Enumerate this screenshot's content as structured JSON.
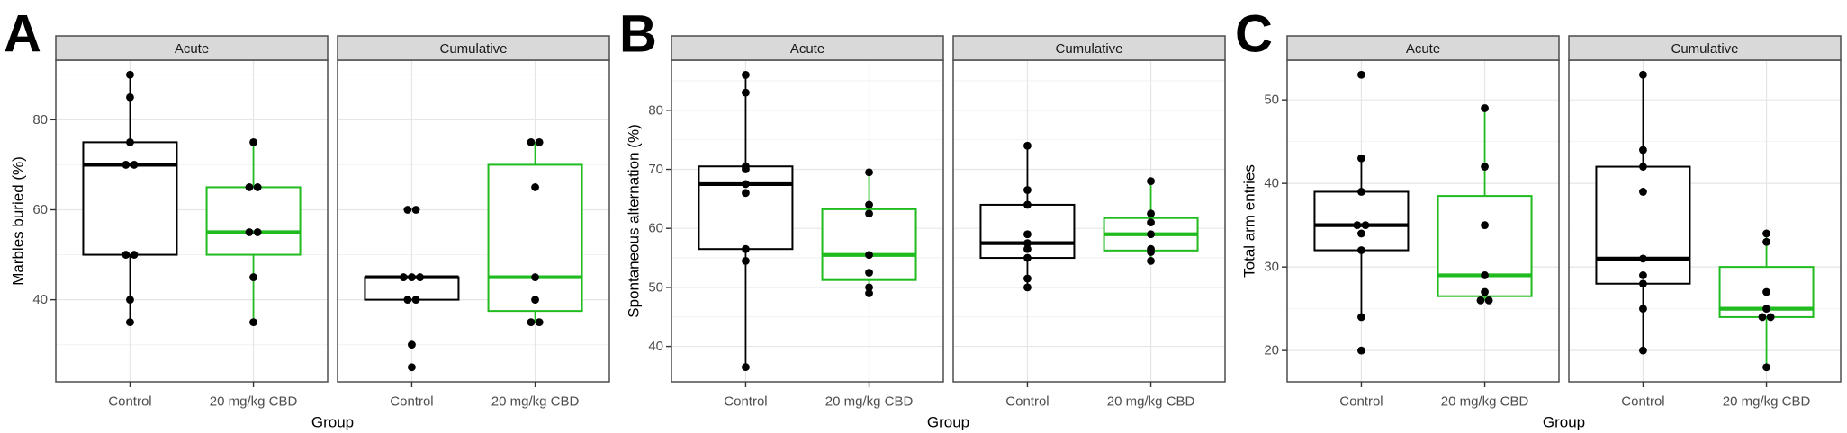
{
  "figure": {
    "background": "#ffffff",
    "colors": {
      "control": "#000000",
      "cbd": "#1fbb1f",
      "point": "#000000",
      "strip_fill": "#d9d9d9",
      "strip_border": "#4d4d4d",
      "panel_border": "#4d4d4d",
      "grid_major": "#e6e6e6",
      "grid_minor": "#f2f2f2",
      "tick_mark": "#333333",
      "tick_label": "#4d4d4d",
      "axis_title": "#000000",
      "strip_text": "#1a1a1a",
      "letter": "#000000"
    }
  },
  "chart_data": [
    {
      "type": "boxplot",
      "panel_letter": "A",
      "ylabel": "Marbles buried (%)",
      "xlabel": "Group",
      "facets": [
        "Acute",
        "Cumulative"
      ],
      "groups": [
        "Control",
        "20 mg/kg CBD"
      ],
      "yticks": [
        40,
        60,
        80
      ],
      "ylim": [
        21.75,
        93.25
      ],
      "legend": "none",
      "grid": true,
      "series": [
        {
          "facet": "Acute",
          "group": "Control",
          "color_key": "control",
          "box": {
            "whisker_low": 35,
            "q1": 50,
            "median": 70,
            "q3": 75,
            "whisker_high": 90
          },
          "points": [
            90,
            85,
            75,
            70,
            70,
            50,
            50,
            40,
            35
          ]
        },
        {
          "facet": "Acute",
          "group": "20 mg/kg CBD",
          "color_key": "cbd",
          "box": {
            "whisker_low": 35,
            "q1": 50,
            "median": 55,
            "q3": 65,
            "whisker_high": 75
          },
          "points": [
            75,
            65,
            65,
            55,
            55,
            45,
            35
          ]
        },
        {
          "facet": "Cumulative",
          "group": "Control",
          "color_key": "control",
          "box": {
            "whisker_low": 40,
            "q1": 40,
            "median": 45,
            "q3": 45,
            "whisker_high": 45
          },
          "points": [
            60,
            60,
            45,
            45,
            45,
            40,
            40,
            30,
            25
          ]
        },
        {
          "facet": "Cumulative",
          "group": "20 mg/kg CBD",
          "color_key": "cbd",
          "box": {
            "whisker_low": 35,
            "q1": 37.5,
            "median": 45,
            "q3": 70,
            "whisker_high": 75
          },
          "points": [
            75,
            75,
            65,
            45,
            40,
            35,
            35
          ]
        }
      ]
    },
    {
      "type": "boxplot",
      "panel_letter": "B",
      "ylabel": "Spontaneous alternation (%)",
      "xlabel": "Group",
      "facets": [
        "Acute",
        "Cumulative"
      ],
      "groups": [
        "Control",
        "20 mg/kg CBD"
      ],
      "yticks": [
        40,
        50,
        60,
        70,
        80
      ],
      "ylim": [
        34.0,
        88.5
      ],
      "legend": "none",
      "grid": true,
      "series": [
        {
          "facet": "Acute",
          "group": "Control",
          "color_key": "control",
          "box": {
            "whisker_low": 36.5,
            "q1": 56.5,
            "median": 67.5,
            "q3": 70.5,
            "whisker_high": 86
          },
          "points": [
            86,
            83,
            70.5,
            70,
            67.5,
            66,
            56.5,
            54.5,
            36.5
          ]
        },
        {
          "facet": "Acute",
          "group": "20 mg/kg CBD",
          "color_key": "cbd",
          "box": {
            "whisker_low": 49,
            "q1": 51.25,
            "median": 55.5,
            "q3": 63.25,
            "whisker_high": 69.5
          },
          "points": [
            69.5,
            64,
            62.5,
            55.5,
            52.5,
            50,
            49
          ]
        },
        {
          "facet": "Cumulative",
          "group": "Control",
          "color_key": "control",
          "box": {
            "whisker_low": 50,
            "q1": 55,
            "median": 57.5,
            "q3": 64,
            "whisker_high": 74
          },
          "points": [
            74,
            66.5,
            64,
            59,
            57.5,
            56.5,
            55,
            51.5,
            50
          ]
        },
        {
          "facet": "Cumulative",
          "group": "20 mg/kg CBD",
          "color_key": "cbd",
          "box": {
            "whisker_low": 54.5,
            "q1": 56.25,
            "median": 59,
            "q3": 61.75,
            "whisker_high": 68
          },
          "points": [
            68,
            62.5,
            61,
            59,
            56.5,
            56,
            54.5
          ]
        }
      ]
    },
    {
      "type": "boxplot",
      "panel_letter": "C",
      "ylabel": "Total arm entries",
      "xlabel": "Group",
      "facets": [
        "Acute",
        "Cumulative"
      ],
      "groups": [
        "Control",
        "20 mg/kg CBD"
      ],
      "yticks": [
        20,
        30,
        40,
        50
      ],
      "ylim": [
        16.25,
        54.75
      ],
      "legend": "none",
      "grid": true,
      "series": [
        {
          "facet": "Acute",
          "group": "Control",
          "color_key": "control",
          "box": {
            "whisker_low": 24,
            "q1": 32,
            "median": 35,
            "q3": 39,
            "whisker_high": 43
          },
          "points": [
            53,
            43,
            39,
            35,
            35,
            34,
            32,
            24,
            20
          ]
        },
        {
          "facet": "Acute",
          "group": "20 mg/kg CBD",
          "color_key": "cbd",
          "box": {
            "whisker_low": 26,
            "q1": 26.5,
            "median": 29,
            "q3": 38.5,
            "whisker_high": 49
          },
          "points": [
            49,
            42,
            35,
            29,
            27,
            26,
            26
          ]
        },
        {
          "facet": "Cumulative",
          "group": "Control",
          "color_key": "control",
          "box": {
            "whisker_low": 20,
            "q1": 28,
            "median": 31,
            "q3": 42,
            "whisker_high": 53
          },
          "points": [
            53,
            44,
            42,
            39,
            31,
            29,
            28,
            25,
            20
          ]
        },
        {
          "facet": "Cumulative",
          "group": "20 mg/kg CBD",
          "color_key": "cbd",
          "box": {
            "whisker_low": 18,
            "q1": 24,
            "median": 25,
            "q3": 30,
            "whisker_high": 34
          },
          "points": [
            34,
            33,
            27,
            25,
            24,
            24,
            18
          ]
        }
      ]
    }
  ]
}
